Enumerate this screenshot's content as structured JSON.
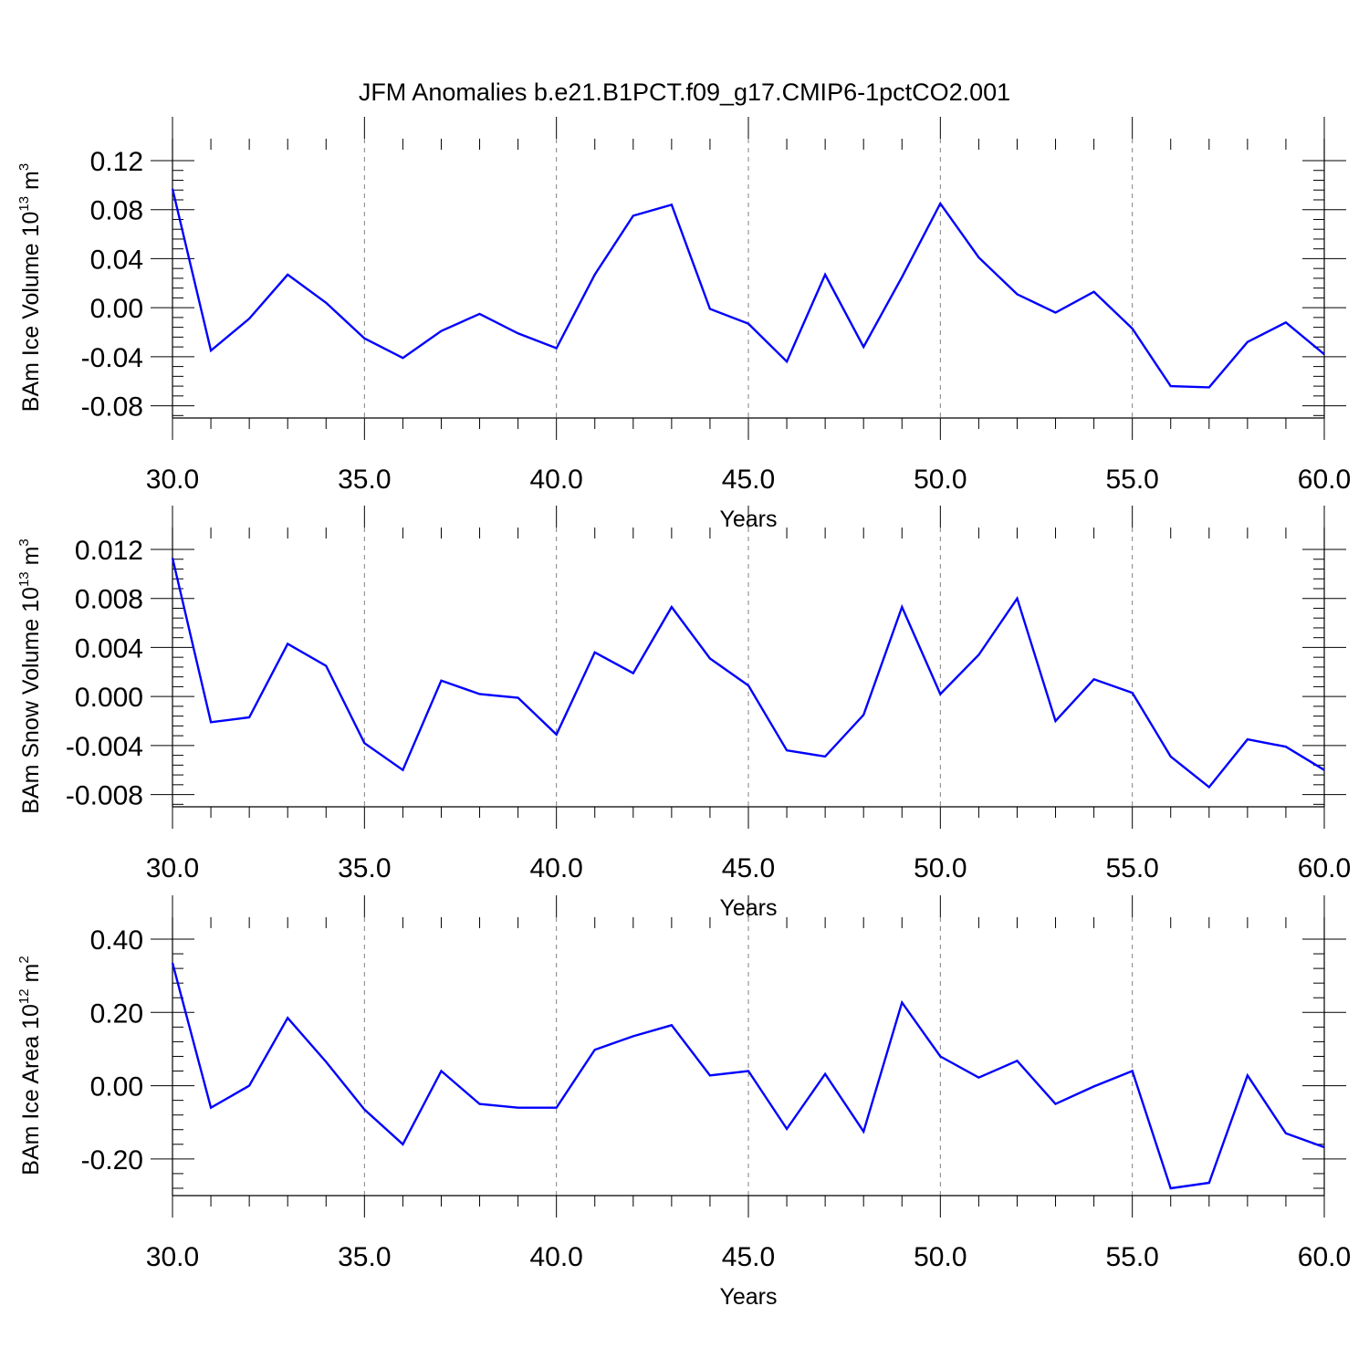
{
  "title": "JFM Anomalies b.e21.B1PCT.f09_g17.CMIP6-1pctCO2.001",
  "colors": {
    "line": "#0000ff",
    "axis": "#000000",
    "grid": "#808080",
    "background": "#ffffff"
  },
  "chart_data": [
    {
      "type": "line",
      "title": "",
      "xlabel": "Years",
      "ylabel": {
        "text": "BAm Ice Volume 10",
        "exponent": "13",
        "unit": " m",
        "unit_exponent": "3"
      },
      "xlim": [
        30,
        60
      ],
      "ylim": [
        -0.09,
        0.12
      ],
      "x_ticks": [
        30,
        35,
        40,
        45,
        50,
        55,
        60
      ],
      "x_tick_labels": [
        "30.0",
        "35.0",
        "40.0",
        "45.0",
        "50.0",
        "55.0",
        "60.0"
      ],
      "y_ticks": [
        0.12,
        0.08,
        0.04,
        0.0,
        -0.04,
        -0.08
      ],
      "y_tick_labels": [
        "0.12",
        "0.08",
        "0.04",
        "0.00",
        "-0.04",
        "-0.08"
      ],
      "x_grid": true,
      "x": [
        30,
        31,
        32,
        33,
        34,
        35,
        36,
        37,
        38,
        39,
        40,
        41,
        42,
        43,
        44,
        45,
        46,
        47,
        48,
        49,
        50,
        51,
        52,
        53,
        54,
        55,
        56,
        57,
        58,
        59,
        60
      ],
      "series": [
        {
          "values": [
            0.097,
            -0.035,
            -0.009,
            0.027,
            0.004,
            -0.025,
            -0.041,
            -0.019,
            -0.005,
            -0.021,
            -0.033,
            0.027,
            0.075,
            0.084,
            -0.001,
            -0.013,
            -0.044,
            0.027,
            -0.032,
            0.025,
            0.085,
            0.041,
            0.011,
            -0.004,
            0.013,
            -0.017,
            -0.064,
            -0.065,
            -0.028,
            -0.012,
            -0.038
          ]
        }
      ]
    },
    {
      "type": "line",
      "title": "",
      "xlabel": "Years",
      "ylabel": {
        "text": "BAm Snow Volume 10",
        "exponent": "13",
        "unit": " m",
        "unit_exponent": "3"
      },
      "xlim": [
        30,
        60
      ],
      "ylim": [
        -0.009,
        0.012
      ],
      "x_ticks": [
        30,
        35,
        40,
        45,
        50,
        55,
        60
      ],
      "x_tick_labels": [
        "30.0",
        "35.0",
        "40.0",
        "45.0",
        "50.0",
        "55.0",
        "60.0"
      ],
      "y_ticks": [
        0.012,
        0.008,
        0.004,
        0.0,
        -0.004,
        -0.008
      ],
      "y_tick_labels": [
        "0.012",
        "0.008",
        "0.004",
        "0.000",
        "-0.004",
        "-0.008"
      ],
      "x_grid": true,
      "x": [
        30,
        31,
        32,
        33,
        34,
        35,
        36,
        37,
        38,
        39,
        40,
        41,
        42,
        43,
        44,
        45,
        46,
        47,
        48,
        49,
        50,
        51,
        52,
        53,
        54,
        55,
        56,
        57,
        58,
        59,
        60
      ],
      "series": [
        {
          "values": [
            0.0113,
            -0.0021,
            -0.0017,
            0.0043,
            0.0025,
            -0.0038,
            -0.006,
            0.0013,
            0.0002,
            -0.0001,
            -0.0031,
            0.0036,
            0.0019,
            0.0073,
            0.0031,
            0.0009,
            -0.0044,
            -0.0049,
            -0.0015,
            0.0073,
            0.0002,
            0.0034,
            0.008,
            -0.002,
            0.0014,
            0.0003,
            -0.0049,
            -0.0074,
            -0.0035,
            -0.0041,
            -0.006
          ]
        }
      ]
    },
    {
      "type": "line",
      "title": "",
      "xlabel": "Years",
      "ylabel": {
        "text": "BAm Ice Area 10",
        "exponent": "12",
        "unit": " m",
        "unit_exponent": "2"
      },
      "xlim": [
        30,
        60
      ],
      "ylim": [
        -0.3,
        0.4
      ],
      "x_ticks": [
        30,
        35,
        40,
        45,
        50,
        55,
        60
      ],
      "x_tick_labels": [
        "30.0",
        "35.0",
        "40.0",
        "45.0",
        "50.0",
        "55.0",
        "60.0"
      ],
      "y_ticks": [
        0.4,
        0.2,
        0.0,
        -0.2
      ],
      "y_tick_labels": [
        "0.40",
        "0.20",
        "0.00",
        "-0.20"
      ],
      "x_grid": true,
      "x": [
        30,
        31,
        32,
        33,
        34,
        35,
        36,
        37,
        38,
        39,
        40,
        41,
        42,
        43,
        44,
        45,
        46,
        47,
        48,
        49,
        50,
        51,
        52,
        53,
        54,
        55,
        56,
        57,
        58,
        59,
        60
      ],
      "series": [
        {
          "values": [
            0.335,
            -0.06,
            0.0,
            0.185,
            0.065,
            -0.065,
            -0.16,
            0.04,
            -0.05,
            -0.06,
            -0.06,
            0.098,
            0.135,
            0.165,
            0.028,
            0.04,
            -0.118,
            0.032,
            -0.125,
            0.227,
            0.08,
            0.022,
            0.068,
            -0.05,
            -0.002,
            0.04,
            -0.28,
            -0.265,
            0.028,
            -0.13,
            -0.168
          ]
        }
      ]
    }
  ]
}
